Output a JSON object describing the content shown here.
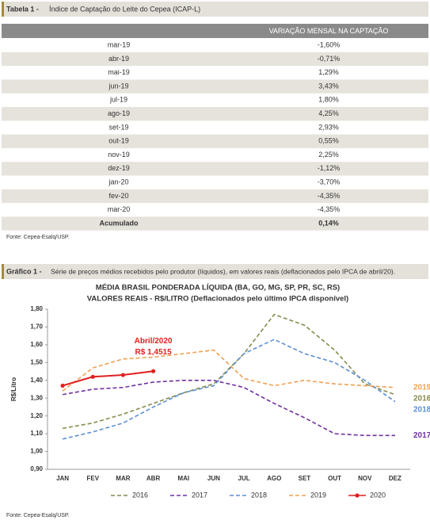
{
  "table_section": {
    "caption_label": "Tabela 1 -",
    "caption_text": "Índice de Captação do Leite do Cepea (ICAP-L)",
    "header": "VARIAÇÃO MENSAL NA CAPTAÇÃO",
    "rows": [
      [
        "mar-19",
        "-1,60%"
      ],
      [
        "abr-19",
        "-0,71%"
      ],
      [
        "mai-19",
        "1,29%"
      ],
      [
        "jun-19",
        "3,43%"
      ],
      [
        "jul-19",
        "1,80%"
      ],
      [
        "ago-19",
        "4,25%"
      ],
      [
        "set-19",
        "2,93%"
      ],
      [
        "out-19",
        "0,55%"
      ],
      [
        "nov-19",
        "2,25%"
      ],
      [
        "dez-19",
        "-1,12%"
      ],
      [
        "jan-20",
        "-3,70%"
      ],
      [
        "fev-20",
        "-4,35%"
      ],
      [
        "mar-20",
        "-4,35%"
      ],
      [
        "Acumulado",
        "0,14%"
      ]
    ],
    "source": "Fonte: Cepea-Esalq/USP."
  },
  "chart_section": {
    "caption_label": "Gráfico 1 -",
    "caption_text": "Série de preços médios recebidos pelo produtor (líquidos), em valores reais (deflacionados pelo IPCA de abril/20).",
    "source": "Fonte: Cepea-Esalq/USP."
  },
  "chart_data": {
    "type": "line",
    "title": "MÉDIA BRASIL PONDERADA LÍQUIDA (BA, GO, MG, SP, PR, SC, RS)",
    "subtitle": "VALORES REAIS - R$/LITRO (Deflacionados pelo último IPCA disponível)",
    "y_label": "R$/Litro",
    "categories": [
      "JAN",
      "FEV",
      "MAR",
      "ABR",
      "MAI",
      "JUN",
      "JUL",
      "AGO",
      "SET",
      "OUT",
      "NOV",
      "DEZ"
    ],
    "ylim": [
      0.9,
      1.8
    ],
    "yticks": [
      {
        "value": 0.9,
        "label": "0,90"
      },
      {
        "value": 1.0,
        "label": "1,00"
      },
      {
        "value": 1.1,
        "label": "1,10"
      },
      {
        "value": 1.2,
        "label": "1,20"
      },
      {
        "value": 1.3,
        "label": "1,30"
      },
      {
        "value": 1.4,
        "label": "1,40"
      },
      {
        "value": 1.5,
        "label": "1,50"
      },
      {
        "value": 1.6,
        "label": "1,60"
      },
      {
        "value": 1.7,
        "label": "1,70"
      },
      {
        "value": 1.8,
        "label": "1,80"
      }
    ],
    "series": [
      {
        "name": "2016",
        "color": "#868a4c",
        "dashed": true,
        "values": [
          1.13,
          1.16,
          1.21,
          1.27,
          1.33,
          1.38,
          1.55,
          1.77,
          1.71,
          1.57,
          1.38,
          1.32
        ]
      },
      {
        "name": "2017",
        "color": "#7030a0",
        "dashed": true,
        "values": [
          1.32,
          1.35,
          1.36,
          1.39,
          1.4,
          1.4,
          1.36,
          1.27,
          1.19,
          1.1,
          1.09,
          1.09
        ]
      },
      {
        "name": "2018",
        "color": "#5b8fd1",
        "dashed": true,
        "values": [
          1.07,
          1.11,
          1.16,
          1.25,
          1.33,
          1.37,
          1.55,
          1.63,
          1.55,
          1.5,
          1.4,
          1.28
        ]
      },
      {
        "name": "2019",
        "color": "#f0a050",
        "dashed": true,
        "values": [
          1.34,
          1.47,
          1.52,
          1.53,
          1.55,
          1.57,
          1.41,
          1.37,
          1.4,
          1.38,
          1.37,
          1.36
        ]
      },
      {
        "name": "2020",
        "color": "#e02020",
        "dashed": false,
        "markers": true,
        "values": [
          1.37,
          1.42,
          1.43,
          1.4515,
          null,
          null,
          null,
          null,
          null,
          null,
          null,
          null
        ]
      }
    ],
    "annotation": {
      "text": "Abril/2020",
      "value_label": "R$ 1,4515"
    }
  }
}
